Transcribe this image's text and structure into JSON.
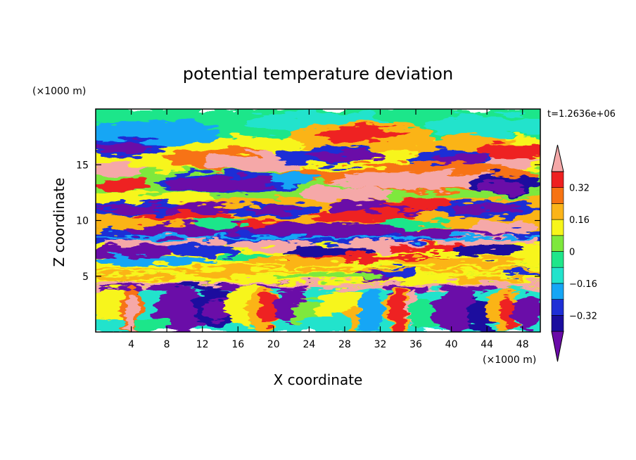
{
  "chart_data": {
    "type": "heatmap",
    "title": "potential temperature deviation",
    "xlabel": "X coordinate",
    "ylabel": "Z coordinate",
    "x_unit": "(×1000 m)",
    "y_unit": "(×1000 m)",
    "time_label": "t=1.2636e+06",
    "xlim": [
      0,
      50
    ],
    "ylim": [
      0,
      20
    ],
    "x_ticks": [
      4,
      8,
      12,
      16,
      20,
      24,
      28,
      32,
      36,
      40,
      44,
      48
    ],
    "x_tick_labels": [
      "4",
      "8",
      "12",
      "16",
      "20",
      "24",
      "28",
      "32",
      "36",
      "40",
      "44",
      "48"
    ],
    "y_ticks": [
      5,
      10,
      15
    ],
    "y_tick_labels": [
      "5",
      "10",
      "15"
    ],
    "colorbar": {
      "levels": [
        -0.4,
        -0.32,
        -0.24,
        -0.16,
        -0.08,
        0,
        0.08,
        0.16,
        0.24,
        0.32,
        0.4
      ],
      "labels": [
        {
          "value": 0.32,
          "text": "0.32"
        },
        {
          "value": 0.16,
          "text": "0.16"
        },
        {
          "value": 0,
          "text": "0"
        },
        {
          "value": -0.16,
          "text": "−0.16"
        },
        {
          "value": -0.32,
          "text": "−0.32"
        }
      ],
      "colors": [
        "#6a0aa8",
        "#1a0d9e",
        "#1e2fd6",
        "#16a6f5",
        "#22e3cc",
        "#1ee68a",
        "#7ee83c",
        "#f7f51a",
        "#fbb419",
        "#f77312",
        "#ee2020",
        "#f5a8a8"
      ],
      "extend": "both"
    }
  }
}
